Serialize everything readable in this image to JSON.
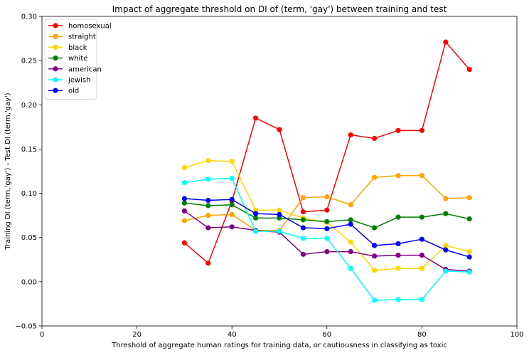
{
  "chart_data": {
    "type": "line",
    "title": "Impact of aggregate threshold on DI of (term, 'gay') between training and test",
    "xlabel": "Threshold of aggregate human ratings for training data, or cautiousness in classifying as toxic",
    "ylabel": "Training DI (term,'gay') - Test DI (term,'gay')",
    "xlim": [
      0,
      100
    ],
    "ylim": [
      -0.05,
      0.3
    ],
    "xticks": [
      0,
      20,
      40,
      60,
      80,
      100
    ],
    "yticks": [
      -0.05,
      0.0,
      0.05,
      0.1,
      0.15,
      0.2,
      0.25,
      0.3
    ],
    "xtick_labels": [
      "0",
      "20",
      "40",
      "60",
      "80",
      "100"
    ],
    "ytick_labels": [
      "−0.05",
      "0.00",
      "0.05",
      "0.10",
      "0.15",
      "0.20",
      "0.25",
      "0.30"
    ],
    "grid": false,
    "legend_position": "upper-left",
    "x": [
      30,
      35,
      40,
      45,
      50,
      55,
      60,
      65,
      70,
      75,
      80,
      85,
      90
    ],
    "series": [
      {
        "name": "homosexual",
        "color": "#ff0000",
        "values": [
          0.044,
          0.021,
          0.091,
          0.185,
          0.172,
          0.079,
          0.081,
          0.166,
          0.162,
          0.171,
          0.171,
          0.271,
          0.24
        ]
      },
      {
        "name": "straight",
        "color": "#ffa500",
        "values": [
          0.069,
          0.075,
          0.076,
          0.058,
          0.058,
          0.095,
          0.096,
          0.087,
          0.118,
          0.12,
          0.12,
          0.094,
          0.095
        ]
      },
      {
        "name": "black",
        "color": "#ffd700",
        "values": [
          0.129,
          0.137,
          0.136,
          0.081,
          0.081,
          0.072,
          0.067,
          0.045,
          0.013,
          0.015,
          0.015,
          0.041,
          0.034
        ]
      },
      {
        "name": "white",
        "color": "#008000",
        "values": [
          0.089,
          0.086,
          0.087,
          0.072,
          0.072,
          0.07,
          0.068,
          0.07,
          0.061,
          0.073,
          0.073,
          0.077,
          0.071
        ]
      },
      {
        "name": "american",
        "color": "#800080",
        "values": [
          0.08,
          0.061,
          0.062,
          0.058,
          0.056,
          0.031,
          0.034,
          0.034,
          0.029,
          0.03,
          0.03,
          0.014,
          0.012
        ]
      },
      {
        "name": "jewish",
        "color": "#00ffff",
        "values": [
          0.112,
          0.116,
          0.117,
          0.057,
          0.057,
          0.049,
          0.049,
          0.015,
          -0.021,
          -0.02,
          -0.02,
          0.012,
          0.011
        ]
      },
      {
        "name": "old",
        "color": "#0000ff",
        "values": [
          0.094,
          0.092,
          0.093,
          0.077,
          0.076,
          0.061,
          0.06,
          0.065,
          0.041,
          0.043,
          0.048,
          0.036,
          0.028
        ]
      }
    ]
  }
}
